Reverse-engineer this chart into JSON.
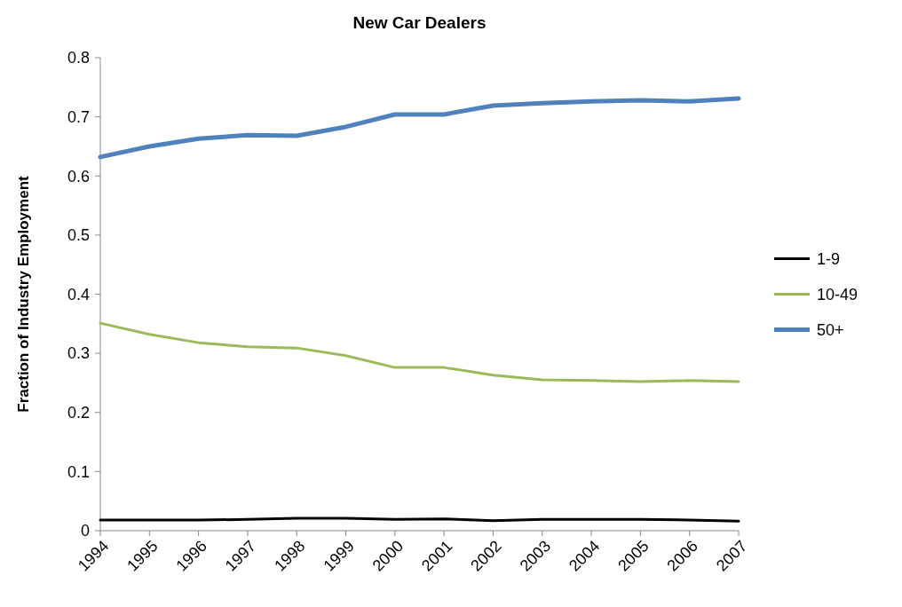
{
  "chart_data": {
    "type": "line",
    "title": "New Car Dealers",
    "ylabel": "Fraction of Industry Employment",
    "categories": [
      "1994",
      "1995",
      "1996",
      "1997",
      "1998",
      "1999",
      "2000",
      "2001",
      "2002",
      "2003",
      "2004",
      "2005",
      "2006",
      "2007"
    ],
    "ylim": [
      0,
      0.8
    ],
    "yticks": [
      0,
      0.1,
      0.2,
      0.3,
      0.4,
      0.5,
      0.6,
      0.7,
      0.8
    ],
    "grid": false,
    "legend": "right",
    "marker": "none",
    "series": [
      {
        "name": "1-9",
        "color": "#000000",
        "values": [
          0.018,
          0.018,
          0.018,
          0.019,
          0.021,
          0.021,
          0.019,
          0.02,
          0.017,
          0.019,
          0.019,
          0.019,
          0.018,
          0.016
        ]
      },
      {
        "name": "10-49",
        "color": "#9bbb59",
        "values": [
          0.351,
          0.332,
          0.318,
          0.311,
          0.309,
          0.296,
          0.276,
          0.276,
          0.263,
          0.255,
          0.254,
          0.252,
          0.254,
          0.252
        ]
      },
      {
        "name": "50+",
        "color": "#4f81bd",
        "values": [
          0.632,
          0.65,
          0.663,
          0.669,
          0.668,
          0.683,
          0.704,
          0.704,
          0.719,
          0.723,
          0.726,
          0.728,
          0.726,
          0.731
        ]
      }
    ]
  }
}
